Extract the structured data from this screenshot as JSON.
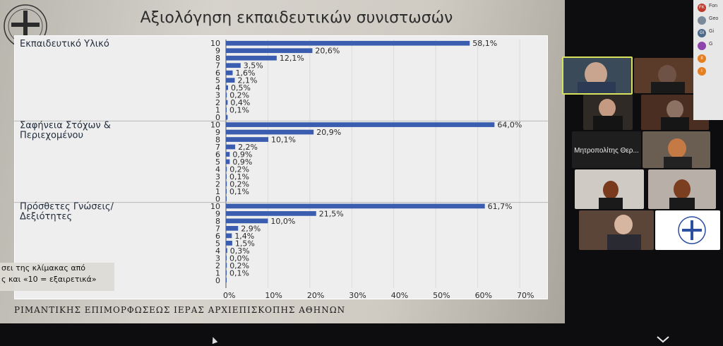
{
  "slide": {
    "title": "Αξιολόγηση εκπαιδευτικών συνιστωσών",
    "footer": "ΡΙΜΑΝΤΙΚΗΣ ΕΠΙΜΟΡΦΩΣΕΩΣ ΙΕΡΑΣ ΑΡΧΙΕΠΙΣΚΟΠΗΣ ΑΘΗΝΩΝ",
    "footnote_line1": "σει της κλίμακας από",
    "footnote_line2": "ς και «10 = εξαιρετικά»"
  },
  "chart_data": {
    "type": "bar",
    "orientation": "horizontal",
    "x_ticks": [
      "0%",
      "10%",
      "20%",
      "30%",
      "40%",
      "50%",
      "60%",
      "70%"
    ],
    "xlim": [
      0,
      70
    ],
    "grid": true,
    "bar_color": "#3a5db0",
    "groups": [
      {
        "label_line1": "Εκπαιδευτικό Υλικό",
        "label_line2": "",
        "categories": [
          "10",
          "9",
          "8",
          "7",
          "6",
          "5",
          "4",
          "3",
          "2",
          "1",
          "0"
        ],
        "values": [
          58.1,
          20.6,
          12.1,
          3.5,
          1.6,
          2.1,
          0.5,
          0.2,
          0.4,
          0.1,
          0.4
        ],
        "value_labels": [
          "58,1%",
          "20,6%",
          "12,1%",
          "3,5%",
          "1,6%",
          "2,1%",
          "0,5%",
          "0,2%",
          "0,4%",
          "0,1%",
          ""
        ]
      },
      {
        "label_line1": "Σαφήνεια Στόχων &",
        "label_line2": "Περιεχομένου",
        "categories": [
          "10",
          "9",
          "8",
          "7",
          "6",
          "5",
          "4",
          "3",
          "2",
          "1",
          "0"
        ],
        "values": [
          64.0,
          20.9,
          10.1,
          2.2,
          0.9,
          0.9,
          0.2,
          0.1,
          0.2,
          0.1,
          0.1
        ],
        "value_labels": [
          "64,0%",
          "20,9%",
          "10,1%",
          "2,2%",
          "0,9%",
          "0,9%",
          "0,2%",
          "0,1%",
          "0,2%",
          "0,1%",
          ""
        ]
      },
      {
        "label_line1": "Πρόσθετες Γνώσεις/",
        "label_line2": "Δεξιότητες",
        "categories": [
          "10",
          "9",
          "8",
          "7",
          "6",
          "5",
          "4",
          "3",
          "2",
          "1",
          "0"
        ],
        "values": [
          61.7,
          21.5,
          10.0,
          2.9,
          1.4,
          1.5,
          0.3,
          0.0,
          0.2,
          0.1,
          0.1
        ],
        "value_labels": [
          "61,7%",
          "21,5%",
          "10,0%",
          "2,9%",
          "1,4%",
          "1,5%",
          "0,3%",
          "0,0%",
          "0,2%",
          "0,1%",
          ""
        ]
      }
    ]
  },
  "video_gallery": {
    "active_speaker_color": "#d8e25c",
    "name_tile": "Μητροπολίτης Θερ..."
  },
  "participants_panel": {
    "rows": [
      {
        "initials": "FK",
        "name": "Fon",
        "color": "#c0392b"
      },
      {
        "initials": "",
        "name": "Geo",
        "color": "#7a8a99"
      },
      {
        "initials": "GI",
        "name": "Gi",
        "color": "#4b6a8a"
      },
      {
        "initials": "",
        "name": "G",
        "color": "#8e44ad"
      },
      {
        "initials": "II",
        "name": "",
        "color": "#e67e22"
      },
      {
        "initials": "I",
        "name": "",
        "color": "#e67e22"
      }
    ]
  }
}
